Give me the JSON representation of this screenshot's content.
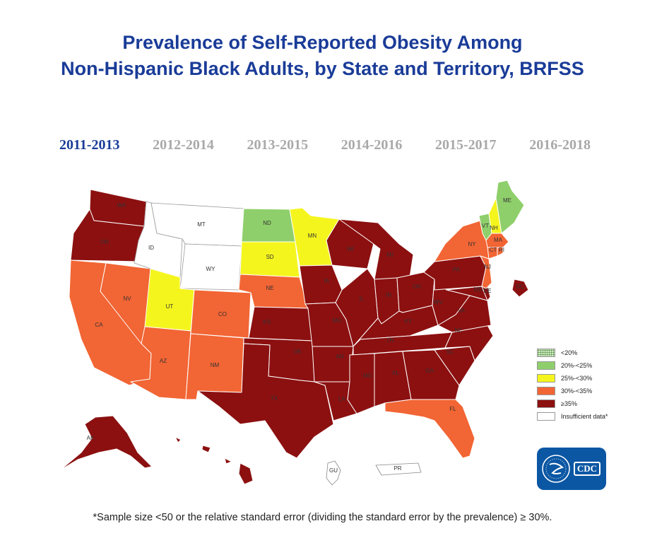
{
  "title": {
    "line1": "Prevalence of Self-Reported Obesity Among",
    "line2": "Non-Hispanic Black Adults, by State and Territory, BRFSS"
  },
  "year_tabs": [
    {
      "label": "2011-2013",
      "active": true
    },
    {
      "label": "2012-2014",
      "active": false
    },
    {
      "label": "2013-2015",
      "active": false
    },
    {
      "label": "2014-2016",
      "active": false
    },
    {
      "label": "2015-2017",
      "active": false
    },
    {
      "label": "2016-2018",
      "active": false
    }
  ],
  "colors": {
    "lt20": "#cfe8c2",
    "c20_25": "#8fcf6b",
    "c25_30": "#f5f51e",
    "c30_35": "#f26534",
    "ge35": "#8c1010",
    "none": "#ffffff",
    "title": "#1a3c98"
  },
  "legend": [
    {
      "key": "lt20",
      "label": "<20%"
    },
    {
      "key": "c20_25",
      "label": "20%-<25%"
    },
    {
      "key": "c25_30",
      "label": "25%-<30%"
    },
    {
      "key": "c30_35",
      "label": "30%-<35%"
    },
    {
      "key": "ge35",
      "label": "≥35%"
    },
    {
      "key": "none",
      "label": "Insufficient data*"
    }
  ],
  "states": {
    "WA": "ge35",
    "OR": "ge35",
    "CA": "c30_35",
    "NV": "c30_35",
    "ID": "none",
    "MT": "none",
    "WY": "none",
    "UT": "c25_30",
    "AZ": "c30_35",
    "CO": "c30_35",
    "NM": "c30_35",
    "ND": "c20_25",
    "SD": "c25_30",
    "NE": "c30_35",
    "KS": "ge35",
    "OK": "ge35",
    "TX": "ge35",
    "MN": "c25_30",
    "IA": "ge35",
    "MO": "ge35",
    "AR": "ge35",
    "LA": "ge35",
    "WI": "ge35",
    "IL": "ge35",
    "MI": "ge35",
    "IN": "ge35",
    "OH": "ge35",
    "KY": "ge35",
    "TN": "ge35",
    "MS": "ge35",
    "AL": "ge35",
    "GA": "ge35",
    "FL": "c30_35",
    "SC": "ge35",
    "NC": "ge35",
    "VA": "ge35",
    "WV": "ge35",
    "PA": "ge35",
    "NY": "c30_35",
    "VT": "c20_25",
    "NH": "c25_30",
    "ME": "c20_25",
    "MA": "c30_35",
    "CT": "c30_35",
    "RI": "c30_35",
    "NJ": "c30_35",
    "DE": "ge35",
    "MD": "ge35",
    "DC": "ge35",
    "AK": "ge35",
    "HI": "ge35",
    "GU": "none",
    "PR": "none"
  },
  "logo_text": "CDC",
  "footnote": "*Sample size <50 or the relative standard error (dividing the standard error by the prevalence) ≥ 30%."
}
